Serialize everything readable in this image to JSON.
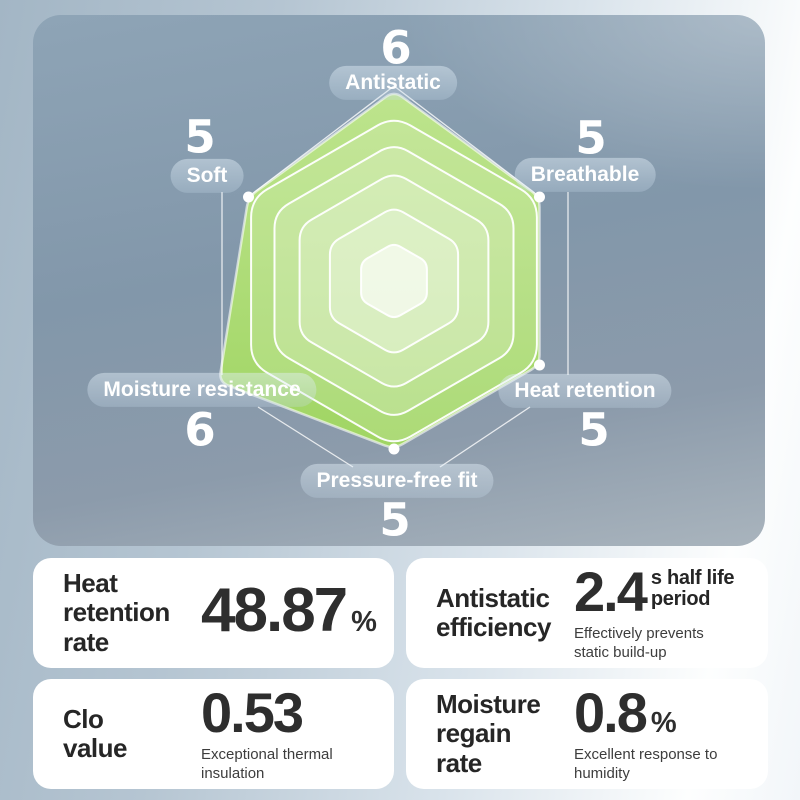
{
  "colors": {
    "accent_green_dark": "#a0d563",
    "accent_green_light": "#bde48d",
    "panel_blue": "#8297aa"
  },
  "chart_data": {
    "type": "radar",
    "categories": [
      "Antistatic",
      "Breathable",
      "Heat retention",
      "Pressure-free fit",
      "Moisture resistance",
      "Soft"
    ],
    "values": [
      6,
      5,
      5,
      5,
      6,
      5
    ],
    "scale_max": 6,
    "grid": "nested-hexagon-rings",
    "legend_position": "none",
    "axis_score_labels": [
      "6",
      "5",
      "5",
      "5",
      "6",
      "5"
    ]
  },
  "cards": [
    {
      "label": "Heat\nretention\nrate",
      "value": "48.87",
      "unit": "%",
      "sub": ""
    },
    {
      "label": "Antistatic\nefficiency",
      "value": "2.4",
      "unit": "s half life\nperiod",
      "sub": "Effectively prevents\nstatic build-up"
    },
    {
      "label": "Clo\nvalue",
      "value": "0.53",
      "unit": "",
      "sub": "Exceptional thermal\ninsulation"
    },
    {
      "label": "Moisture\nregain\nrate",
      "value": "0.8",
      "unit": "%",
      "sub": "Excellent response to\nhumidity"
    }
  ]
}
